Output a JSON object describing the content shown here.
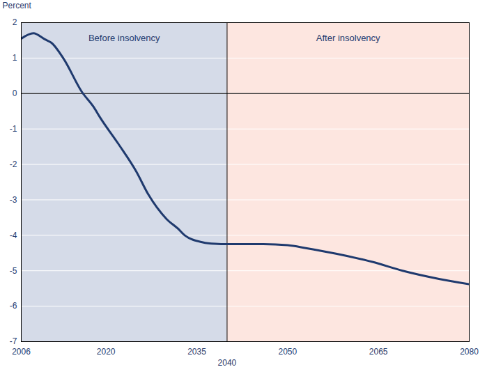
{
  "chart_data": {
    "type": "line",
    "y_label": "Percent",
    "x": [
      2006,
      2008,
      2010,
      2011,
      2013,
      2016,
      2018,
      2019,
      2022,
      2025,
      2027,
      2030,
      2032,
      2033,
      2036,
      2038,
      2040,
      2046,
      2050,
      2053,
      2058,
      2064,
      2069,
      2075,
      2080
    ],
    "values": [
      1.55,
      1.7,
      1.52,
      1.43,
      0.98,
      0.05,
      -0.39,
      -0.67,
      -1.41,
      -2.2,
      -2.85,
      -3.54,
      -3.83,
      -4.0,
      -4.2,
      -4.24,
      -4.25,
      -4.25,
      -4.28,
      -4.36,
      -4.52,
      -4.75,
      -5.0,
      -5.23,
      -5.38
    ],
    "color": "#1f3a6e",
    "regions": [
      {
        "label": "Before insolvency",
        "from": 2006,
        "to": 2040,
        "color": "#d5dbe8"
      },
      {
        "label": "After insolvency",
        "from": 2040,
        "to": 2080,
        "color": "#fde6e0"
      }
    ],
    "xlim": [
      2006,
      2080
    ],
    "xticks": [
      2006,
      2020,
      2035,
      2040,
      2050,
      2065,
      2080
    ],
    "ylim": [
      -7,
      2
    ],
    "yticks": [
      -7,
      -6,
      -5,
      -4,
      -3,
      -2,
      -1,
      0,
      1,
      2
    ],
    "grid": true,
    "baseline": 0
  }
}
